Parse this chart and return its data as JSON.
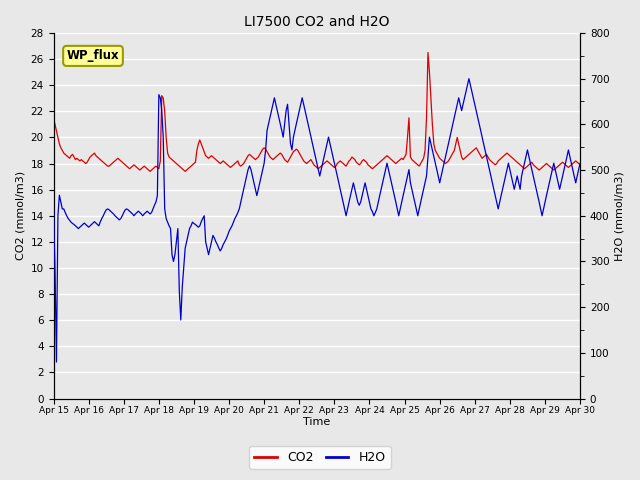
{
  "title": "LI7500 CO2 and H2O",
  "xlabel": "Time",
  "ylabel_left": "CO2 (mmol/m3)",
  "ylabel_right": "H2O (mmol/m3)",
  "ylim_left": [
    0,
    28
  ],
  "ylim_right": [
    0,
    800
  ],
  "yticks_left": [
    0,
    2,
    4,
    6,
    8,
    10,
    12,
    14,
    16,
    18,
    20,
    22,
    24,
    26,
    28
  ],
  "yticks_right": [
    0,
    100,
    200,
    300,
    400,
    500,
    600,
    700,
    800
  ],
  "xtick_labels": [
    "Apr 15",
    "Apr 16",
    "Apr 17",
    "Apr 18",
    "Apr 19",
    "Apr 20",
    "Apr 21",
    "Apr 22",
    "Apr 23",
    "Apr 24",
    "Apr 25",
    "Apr 26",
    "Apr 27",
    "Apr 28",
    "Apr 29",
    "Apr 30"
  ],
  "xtick_positions": [
    0,
    24,
    48,
    72,
    96,
    120,
    144,
    168,
    192,
    216,
    240,
    264,
    288,
    312,
    336,
    360
  ],
  "annotation_text": "WP_flux",
  "bg_color": "#e8e8e8",
  "co2_color": "#dd0000",
  "h2o_color": "#0000cc",
  "legend_co2": "CO2",
  "legend_h2o": "H2O",
  "co2_data": [
    21.5,
    21.0,
    20.5,
    20.0,
    19.5,
    19.2,
    19.0,
    18.8,
    18.7,
    18.6,
    18.5,
    18.4,
    18.6,
    18.7,
    18.5,
    18.3,
    18.4,
    18.3,
    18.2,
    18.3,
    18.2,
    18.1,
    18.0,
    18.1,
    18.3,
    18.5,
    18.6,
    18.7,
    18.8,
    18.6,
    18.5,
    18.4,
    18.3,
    18.2,
    18.1,
    18.0,
    17.9,
    17.8,
    17.8,
    17.9,
    18.0,
    18.1,
    18.2,
    18.3,
    18.4,
    18.3,
    18.2,
    18.1,
    18.0,
    17.9,
    17.8,
    17.7,
    17.6,
    17.7,
    17.8,
    17.9,
    17.8,
    17.7,
    17.6,
    17.5,
    17.6,
    17.7,
    17.8,
    17.7,
    17.6,
    17.5,
    17.4,
    17.5,
    17.6,
    17.7,
    17.8,
    17.7,
    17.6,
    18.2,
    23.2,
    23.0,
    22.0,
    20.0,
    18.8,
    18.5,
    18.4,
    18.3,
    18.2,
    18.1,
    18.0,
    17.9,
    17.8,
    17.7,
    17.6,
    17.5,
    17.4,
    17.5,
    17.6,
    17.7,
    17.8,
    17.9,
    18.0,
    18.1,
    19.0,
    19.5,
    19.8,
    19.5,
    19.2,
    18.9,
    18.6,
    18.5,
    18.4,
    18.5,
    18.6,
    18.5,
    18.4,
    18.3,
    18.2,
    18.1,
    18.0,
    18.1,
    18.2,
    18.1,
    18.0,
    17.9,
    17.8,
    17.7,
    17.8,
    17.9,
    18.0,
    18.1,
    18.2,
    17.9,
    17.8,
    17.9,
    18.0,
    18.2,
    18.4,
    18.6,
    18.7,
    18.6,
    18.5,
    18.4,
    18.3,
    18.4,
    18.5,
    18.7,
    18.9,
    19.1,
    19.2,
    19.1,
    18.9,
    18.7,
    18.5,
    18.4,
    18.3,
    18.4,
    18.5,
    18.6,
    18.7,
    18.8,
    18.7,
    18.5,
    18.3,
    18.2,
    18.1,
    18.3,
    18.5,
    18.7,
    18.9,
    19.0,
    19.1,
    19.0,
    18.8,
    18.6,
    18.4,
    18.2,
    18.1,
    18.0,
    18.1,
    18.2,
    18.3,
    18.1,
    17.9,
    17.8,
    17.7,
    17.6,
    17.7,
    17.8,
    17.9,
    18.0,
    18.1,
    18.2,
    18.1,
    18.0,
    17.9,
    17.8,
    17.7,
    17.8,
    18.0,
    18.1,
    18.2,
    18.1,
    18.0,
    17.9,
    17.8,
    18.0,
    18.2,
    18.3,
    18.5,
    18.4,
    18.3,
    18.1,
    18.0,
    17.9,
    18.0,
    18.2,
    18.3,
    18.2,
    18.1,
    17.9,
    17.8,
    17.7,
    17.6,
    17.7,
    17.8,
    17.9,
    18.0,
    18.1,
    18.2,
    18.3,
    18.4,
    18.5,
    18.6,
    18.5,
    18.4,
    18.3,
    18.2,
    18.1,
    18.0,
    18.1,
    18.2,
    18.3,
    18.4,
    18.3,
    18.5,
    18.7,
    20.0,
    21.5,
    18.5,
    18.3,
    18.2,
    18.1,
    18.0,
    17.9,
    17.8,
    18.0,
    18.2,
    18.4,
    19.0,
    21.5,
    26.5,
    25.0,
    23.0,
    21.0,
    19.5,
    19.0,
    18.8,
    18.6,
    18.4,
    18.3,
    18.2,
    18.1,
    18.0,
    18.1,
    18.2,
    18.4,
    18.6,
    18.8,
    19.0,
    19.5,
    20.0,
    19.5,
    19.0,
    18.5,
    18.3,
    18.4,
    18.5,
    18.6,
    18.7,
    18.8,
    18.9,
    19.0,
    19.1,
    19.2,
    19.0,
    18.8,
    18.6,
    18.4,
    18.5,
    18.6,
    18.7,
    18.5,
    18.3,
    18.2,
    18.1,
    18.0,
    17.9,
    18.0,
    18.2,
    18.3,
    18.4,
    18.5,
    18.6,
    18.7,
    18.8,
    18.7,
    18.6,
    18.5,
    18.4,
    18.3,
    18.2,
    18.1,
    18.0,
    17.9,
    17.8,
    17.7,
    17.6,
    17.7,
    17.8,
    17.9,
    18.0,
    18.1,
    17.9,
    17.8,
    17.7,
    17.6,
    17.5,
    17.6,
    17.7,
    17.8,
    17.9,
    18.0,
    17.9,
    17.8,
    17.7,
    17.6,
    17.5,
    17.6,
    17.7,
    17.8,
    17.9,
    18.0,
    18.1,
    18.0,
    17.9,
    17.8,
    17.7,
    17.8,
    17.9,
    18.0,
    18.1,
    18.2,
    18.1,
    18.0,
    17.9,
    17.8
  ],
  "h2o_data": [
    415,
    285,
    80,
    400,
    445,
    430,
    415,
    415,
    407,
    400,
    394,
    390,
    386,
    383,
    381,
    378,
    375,
    372,
    375,
    378,
    381,
    384,
    381,
    378,
    375,
    378,
    381,
    384,
    387,
    384,
    381,
    378,
    387,
    394,
    400,
    407,
    413,
    415,
    413,
    410,
    407,
    404,
    400,
    397,
    394,
    391,
    394,
    400,
    407,
    413,
    415,
    413,
    410,
    407,
    404,
    400,
    404,
    407,
    410,
    407,
    404,
    400,
    404,
    407,
    410,
    407,
    404,
    407,
    415,
    423,
    430,
    444,
    665,
    658,
    630,
    571,
    415,
    394,
    386,
    378,
    372,
    315,
    300,
    315,
    343,
    372,
    234,
    172,
    243,
    286,
    329,
    343,
    357,
    372,
    378,
    386,
    383,
    381,
    378,
    375,
    378,
    387,
    394,
    400,
    343,
    329,
    315,
    329,
    343,
    357,
    351,
    343,
    337,
    329,
    323,
    329,
    337,
    343,
    349,
    357,
    366,
    372,
    378,
    386,
    394,
    400,
    407,
    415,
    430,
    444,
    458,
    472,
    487,
    501,
    509,
    501,
    487,
    472,
    458,
    444,
    458,
    472,
    487,
    501,
    515,
    544,
    587,
    601,
    615,
    630,
    644,
    658,
    644,
    630,
    615,
    601,
    587,
    572,
    601,
    630,
    644,
    601,
    558,
    544,
    572,
    587,
    601,
    615,
    630,
    644,
    658,
    644,
    630,
    615,
    601,
    587,
    572,
    558,
    544,
    529,
    515,
    501,
    487,
    501,
    515,
    529,
    544,
    558,
    572,
    558,
    544,
    529,
    515,
    501,
    487,
    472,
    458,
    444,
    430,
    415,
    400,
    415,
    430,
    444,
    458,
    472,
    458,
    444,
    430,
    423,
    430,
    444,
    458,
    472,
    458,
    444,
    430,
    415,
    409,
    400,
    407,
    415,
    430,
    444,
    458,
    472,
    487,
    501,
    515,
    501,
    487,
    472,
    458,
    444,
    430,
    415,
    400,
    415,
    430,
    444,
    458,
    472,
    487,
    501,
    472,
    458,
    444,
    430,
    415,
    400,
    415,
    430,
    444,
    458,
    472,
    487,
    529,
    572,
    558,
    544,
    529,
    515,
    501,
    487,
    472,
    487,
    501,
    515,
    529,
    544,
    558,
    572,
    587,
    601,
    615,
    630,
    644,
    658,
    644,
    630,
    644,
    658,
    672,
    686,
    700,
    686,
    672,
    658,
    644,
    630,
    615,
    601,
    587,
    572,
    558,
    544,
    529,
    515,
    501,
    487,
    472,
    458,
    444,
    430,
    415,
    430,
    444,
    458,
    472,
    487,
    501,
    515,
    501,
    487,
    472,
    458,
    472,
    487,
    472,
    458,
    487,
    501,
    515,
    529,
    544,
    529,
    515,
    501,
    487,
    472,
    458,
    444,
    430,
    415,
    400,
    415,
    430,
    444,
    458,
    472,
    487,
    501,
    515,
    501,
    487,
    472,
    458,
    472,
    487,
    501,
    515,
    529,
    544,
    529,
    515,
    501,
    487,
    472,
    487,
    501,
    515,
    501
  ]
}
